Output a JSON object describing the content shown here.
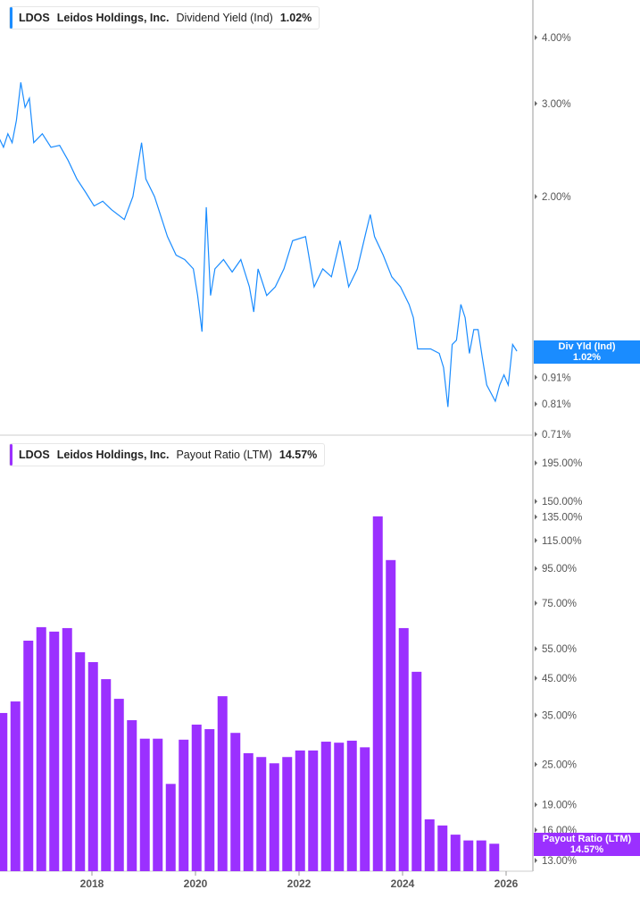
{
  "colors": {
    "yield": "#1a8cff",
    "payout": "#9b30ff",
    "axis": "#bbbbbb"
  },
  "top_legend": {
    "ticker": "LDOS",
    "company": "Leidos Holdings, Inc.",
    "metric": "Dividend Yield (Ind)",
    "value": "1.02%"
  },
  "bottom_legend": {
    "ticker": "LDOS",
    "company": "Leidos Holdings, Inc.",
    "metric": "Payout Ratio (LTM)",
    "value": "14.57%"
  },
  "top_flag": {
    "label": "Div Yld (Ind)",
    "value": "1.02%"
  },
  "bottom_flag": {
    "label": "Payout Ratio (LTM)",
    "value": "14.57%"
  },
  "chart_data": [
    {
      "type": "line",
      "scale": "log",
      "ylim": [
        0.71,
        4.6
      ],
      "xlim": [
        "2016-03",
        "2026-04"
      ],
      "yticks": [
        "4.00%",
        "3.00%",
        "2.00%",
        "1.00%",
        "0.91%",
        "0.81%",
        "0.71%"
      ],
      "ytick_values": [
        4.0,
        3.0,
        2.0,
        1.0,
        0.91,
        0.81,
        0.71
      ],
      "series": [
        {
          "name": "Dividend Yield (Ind)",
          "x": [
            "2016-03",
            "2016-04",
            "2016-05",
            "2016-06",
            "2016-07",
            "2016-08",
            "2016-09",
            "2016-10",
            "2016-11",
            "2017-01",
            "2017-03",
            "2017-05",
            "2017-07",
            "2017-09",
            "2017-11",
            "2018-01",
            "2018-03",
            "2018-05",
            "2018-08",
            "2018-10",
            "2018-12",
            "2019-01",
            "2019-03",
            "2019-06",
            "2019-08",
            "2019-10",
            "2019-12",
            "2020-01",
            "2020-02",
            "2020-03",
            "2020-04",
            "2020-05",
            "2020-07",
            "2020-09",
            "2020-11",
            "2021-01",
            "2021-02",
            "2021-03",
            "2021-05",
            "2021-07",
            "2021-09",
            "2021-11",
            "2022-02",
            "2022-04",
            "2022-06",
            "2022-08",
            "2022-10",
            "2022-12",
            "2023-02",
            "2023-04",
            "2023-05",
            "2023-06",
            "2023-08",
            "2023-10",
            "2023-12",
            "2024-02",
            "2024-03",
            "2024-04",
            "2024-07",
            "2024-09",
            "2024-10",
            "2024-11",
            "2024-12",
            "2025-01",
            "2025-02",
            "2025-03",
            "2025-04",
            "2025-05",
            "2025-06",
            "2025-07",
            "2025-08",
            "2025-10",
            "2025-11",
            "2025-12",
            "2026-01",
            "2026-02",
            "2026-03"
          ],
          "y": [
            2.58,
            2.48,
            2.63,
            2.53,
            2.79,
            3.29,
            2.95,
            3.07,
            2.53,
            2.63,
            2.48,
            2.5,
            2.34,
            2.16,
            2.04,
            1.92,
            1.96,
            1.89,
            1.81,
            2.0,
            2.53,
            2.16,
            2.0,
            1.68,
            1.55,
            1.52,
            1.46,
            1.3,
            1.11,
            1.91,
            1.3,
            1.46,
            1.52,
            1.44,
            1.52,
            1.35,
            1.21,
            1.46,
            1.3,
            1.35,
            1.46,
            1.65,
            1.68,
            1.35,
            1.46,
            1.41,
            1.65,
            1.35,
            1.46,
            1.71,
            1.85,
            1.68,
            1.55,
            1.41,
            1.35,
            1.25,
            1.18,
            1.03,
            1.03,
            1.01,
            0.95,
            0.8,
            1.05,
            1.07,
            1.25,
            1.18,
            1.01,
            1.12,
            1.12,
            0.99,
            0.88,
            0.82,
            0.88,
            0.92,
            0.88,
            1.05,
            1.02
          ]
        }
      ]
    },
    {
      "type": "bar",
      "scale": "log",
      "ylim": [
        12,
        230
      ],
      "yticks": [
        "195.00%",
        "150.00%",
        "135.00%",
        "115.00%",
        "95.00%",
        "75.00%",
        "55.00%",
        "45.00%",
        "35.00%",
        "25.00%",
        "19.00%",
        "16.00%",
        "13.00%"
      ],
      "ytick_values": [
        195,
        150,
        135,
        115,
        95,
        75,
        55,
        45,
        35,
        25,
        19,
        16,
        13
      ],
      "xticks": [
        "2018",
        "2020",
        "2022",
        "2024",
        "2026"
      ],
      "categories": [
        "2016Q1",
        "2016Q2",
        "2016Q3",
        "2016Q4",
        "2017Q1",
        "2017Q2",
        "2017Q3",
        "2017Q4",
        "2018Q1",
        "2018Q2",
        "2018Q3",
        "2018Q4",
        "2019Q1",
        "2019Q2",
        "2019Q3",
        "2019Q4",
        "2020Q1",
        "2020Q2",
        "2020Q3",
        "2020Q4",
        "2021Q1",
        "2021Q2",
        "2021Q3",
        "2021Q4",
        "2022Q1",
        "2022Q2",
        "2022Q3",
        "2022Q4",
        "2023Q1",
        "2023Q2",
        "2023Q3",
        "2023Q4",
        "2024Q1",
        "2024Q2",
        "2024Q3",
        "2024Q4",
        "2025Q1",
        "2025Q2",
        "2025Q3",
        "2025Q4"
      ],
      "series": [
        {
          "name": "Payout Ratio (LTM)",
          "values": [
            36.1,
            35.5,
            38.4,
            58.1,
            63.7,
            61.8,
            63.3,
            53.7,
            50.2,
            44.7,
            39.1,
            33.8,
            29.8,
            29.8,
            21.9,
            29.6,
            32.8,
            31.8,
            39.8,
            31.0,
            27.0,
            26.3,
            25.2,
            26.3,
            27.5,
            27.5,
            29.2,
            29.0,
            29.4,
            28.1,
            135.5,
            100.6,
            63.3,
            47.0,
            17.2,
            16.5,
            15.5,
            14.9,
            14.9,
            14.57
          ]
        }
      ]
    }
  ]
}
